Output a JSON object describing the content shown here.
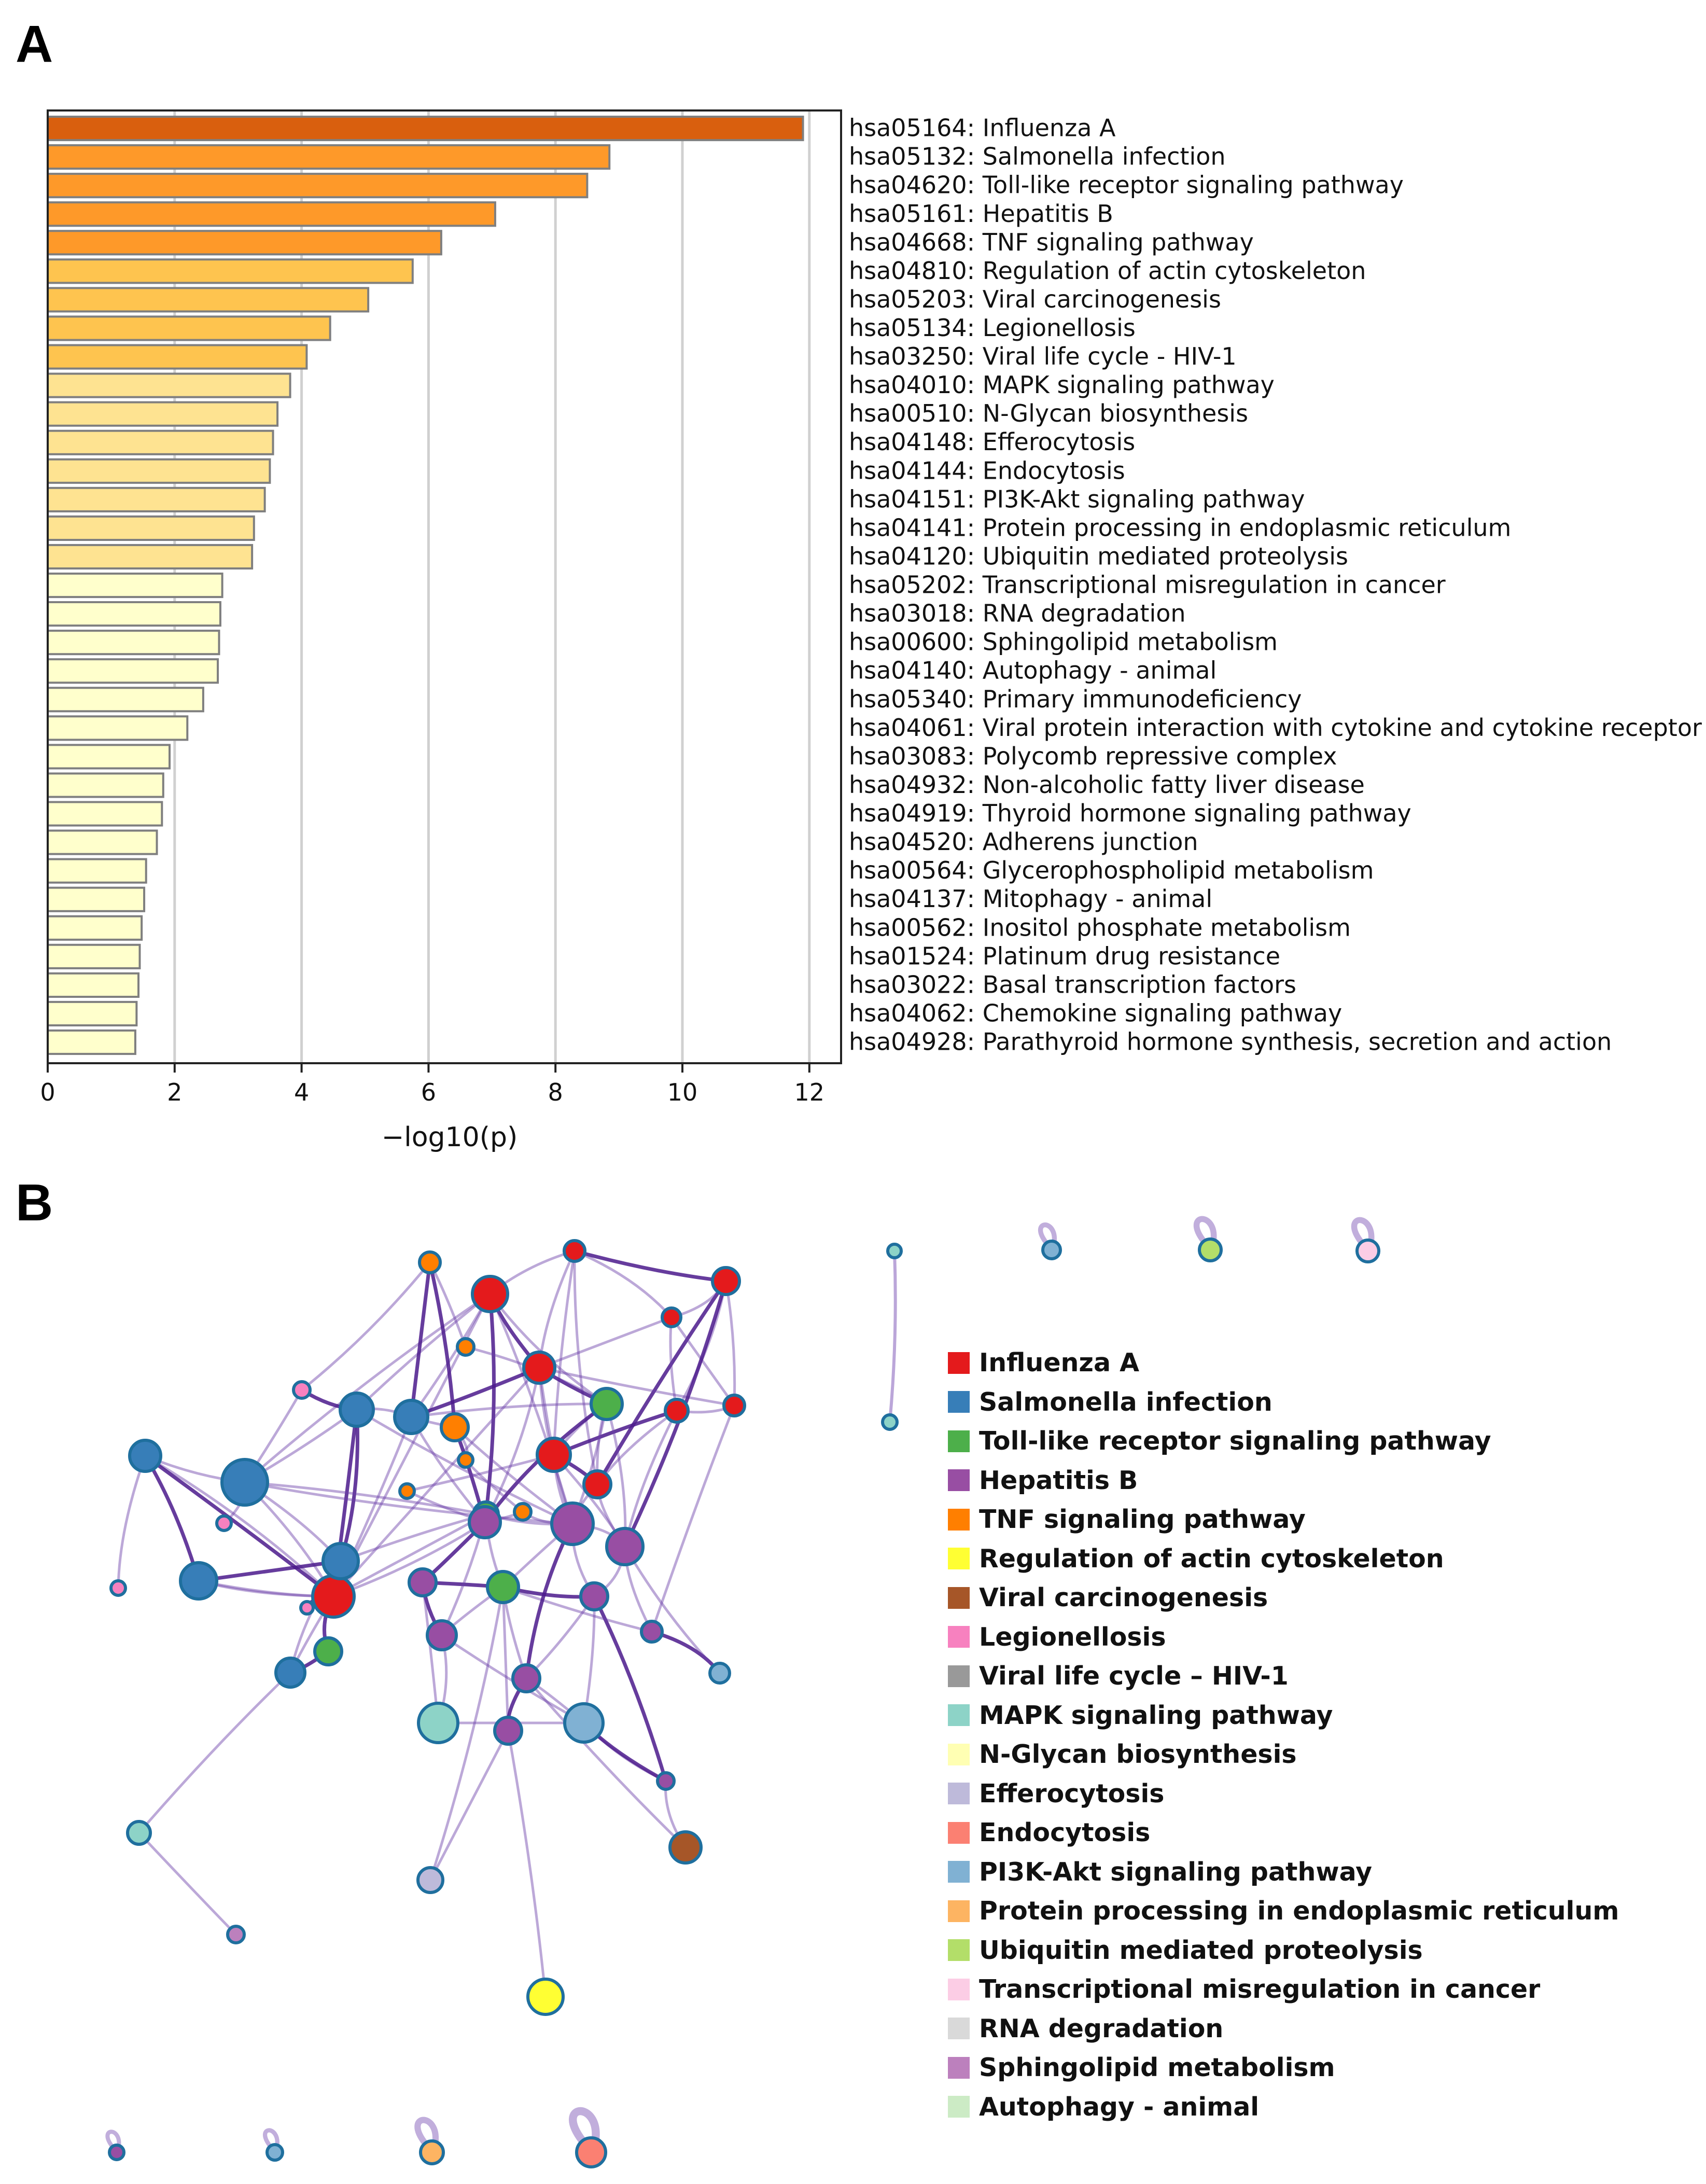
{
  "panelA": {
    "label": "A",
    "chart_data": {
      "type": "bar",
      "orientation": "horizontal",
      "xlabel": "−log10(p)",
      "xlim": [
        0,
        12.5
      ],
      "xticks": [
        0,
        2,
        4,
        6,
        8,
        10,
        12
      ],
      "grid": true,
      "terms": [
        {
          "id": "hsa05164",
          "name": "Influenza A",
          "value": 11.9,
          "color": "#d95f0e"
        },
        {
          "id": "hsa05132",
          "name": "Salmonella infection",
          "value": 8.85,
          "color": "#fe9929"
        },
        {
          "id": "hsa04620",
          "name": "Toll-like receptor signaling pathway",
          "value": 8.5,
          "color": "#fe9929"
        },
        {
          "id": "hsa05161",
          "name": "Hepatitis B",
          "value": 7.05,
          "color": "#fe9929"
        },
        {
          "id": "hsa04668",
          "name": "TNF signaling pathway",
          "value": 6.2,
          "color": "#fe9929"
        },
        {
          "id": "hsa04810",
          "name": "Regulation of actin cytoskeleton",
          "value": 5.75,
          "color": "#fec44f"
        },
        {
          "id": "hsa05203",
          "name": "Viral carcinogenesis",
          "value": 5.05,
          "color": "#fec44f"
        },
        {
          "id": "hsa05134",
          "name": "Legionellosis",
          "value": 4.45,
          "color": "#fec44f"
        },
        {
          "id": "hsa03250",
          "name": "Viral life cycle - HIV-1",
          "value": 4.08,
          "color": "#fec44f"
        },
        {
          "id": "hsa04010",
          "name": "MAPK signaling pathway",
          "value": 3.82,
          "color": "#fee391"
        },
        {
          "id": "hsa00510",
          "name": "N-Glycan biosynthesis",
          "value": 3.62,
          "color": "#fee391"
        },
        {
          "id": "hsa04148",
          "name": "Efferocytosis",
          "value": 3.55,
          "color": "#fee391"
        },
        {
          "id": "hsa04144",
          "name": "Endocytosis",
          "value": 3.5,
          "color": "#fee391"
        },
        {
          "id": "hsa04151",
          "name": "PI3K-Akt signaling pathway",
          "value": 3.42,
          "color": "#fee391"
        },
        {
          "id": "hsa04141",
          "name": "Protein processing in endoplasmic reticulum",
          "value": 3.25,
          "color": "#fee391"
        },
        {
          "id": "hsa04120",
          "name": "Ubiquitin mediated proteolysis",
          "value": 3.22,
          "color": "#fee391"
        },
        {
          "id": "hsa05202",
          "name": "Transcriptional misregulation in cancer",
          "value": 2.75,
          "color": "#ffffcc"
        },
        {
          "id": "hsa03018",
          "name": "RNA degradation",
          "value": 2.72,
          "color": "#ffffcc"
        },
        {
          "id": "hsa00600",
          "name": "Sphingolipid metabolism",
          "value": 2.7,
          "color": "#ffffcc"
        },
        {
          "id": "hsa04140",
          "name": "Autophagy - animal",
          "value": 2.68,
          "color": "#ffffcc"
        },
        {
          "id": "hsa05340",
          "name": "Primary immunodeficiency",
          "value": 2.45,
          "color": "#ffffcc"
        },
        {
          "id": "hsa04061",
          "name": "Viral protein interaction with cytokine and cytokine receptor",
          "value": 2.2,
          "color": "#ffffcc"
        },
        {
          "id": "hsa03083",
          "name": "Polycomb repressive complex",
          "value": 1.92,
          "color": "#ffffcc"
        },
        {
          "id": "hsa04932",
          "name": "Non-alcoholic fatty liver disease",
          "value": 1.82,
          "color": "#ffffcc"
        },
        {
          "id": "hsa04919",
          "name": "Thyroid hormone signaling pathway",
          "value": 1.8,
          "color": "#ffffcc"
        },
        {
          "id": "hsa04520",
          "name": "Adherens junction",
          "value": 1.72,
          "color": "#ffffcc"
        },
        {
          "id": "hsa00564",
          "name": "Glycerophospholipid metabolism",
          "value": 1.55,
          "color": "#ffffcc"
        },
        {
          "id": "hsa04137",
          "name": "Mitophagy - animal",
          "value": 1.52,
          "color": "#ffffcc"
        },
        {
          "id": "hsa00562",
          "name": "Inositol phosphate metabolism",
          "value": 1.48,
          "color": "#ffffcc"
        },
        {
          "id": "hsa01524",
          "name": "Platinum drug resistance",
          "value": 1.45,
          "color": "#ffffcc"
        },
        {
          "id": "hsa03022",
          "name": "Basal transcription factors",
          "value": 1.43,
          "color": "#ffffcc"
        },
        {
          "id": "hsa04062",
          "name": "Chemokine signaling pathway",
          "value": 1.4,
          "color": "#ffffcc"
        },
        {
          "id": "hsa04928",
          "name": "Parathyroid hormone synthesis, secretion and action",
          "value": 1.38,
          "color": "#ffffcc"
        }
      ]
    }
  },
  "panelB": {
    "label": "B",
    "legend": [
      {
        "label": "Influenza A",
        "color": "#e41a1c"
      },
      {
        "label": "Salmonella infection",
        "color": "#377eb8"
      },
      {
        "label": "Toll-like receptor signaling pathway",
        "color": "#4daf4a"
      },
      {
        "label": "Hepatitis B",
        "color": "#984ea3"
      },
      {
        "label": "TNF signaling pathway",
        "color": "#ff7f00"
      },
      {
        "label": "Regulation of actin cytoskeleton",
        "color": "#ffff33"
      },
      {
        "label": "Viral carcinogenesis",
        "color": "#a65628"
      },
      {
        "label": "Legionellosis",
        "color": "#f781bf"
      },
      {
        "label": "Viral life cycle – HIV-1",
        "color": "#999999"
      },
      {
        "label": "MAPK signaling pathway",
        "color": "#8dd3c7"
      },
      {
        "label": "N-Glycan biosynthesis",
        "color": "#ffffb3"
      },
      {
        "label": "Efferocytosis",
        "color": "#bebada"
      },
      {
        "label": "Endocytosis",
        "color": "#fb8072"
      },
      {
        "label": "PI3K-Akt signaling pathway",
        "color": "#80b1d3"
      },
      {
        "label": "Protein processing in endoplasmic reticulum",
        "color": "#fdb462"
      },
      {
        "label": "Ubiquitin mediated proteolysis",
        "color": "#b3de69"
      },
      {
        "label": "Transcriptional misregulation in cancer",
        "color": "#fccde5"
      },
      {
        "label": "RNA degradation",
        "color": "#d9d9d9"
      },
      {
        "label": "Sphingolipid metabolism",
        "color": "#bc80bd"
      },
      {
        "label": "Autophagy - animal",
        "color": "#ccebc5"
      }
    ]
  }
}
